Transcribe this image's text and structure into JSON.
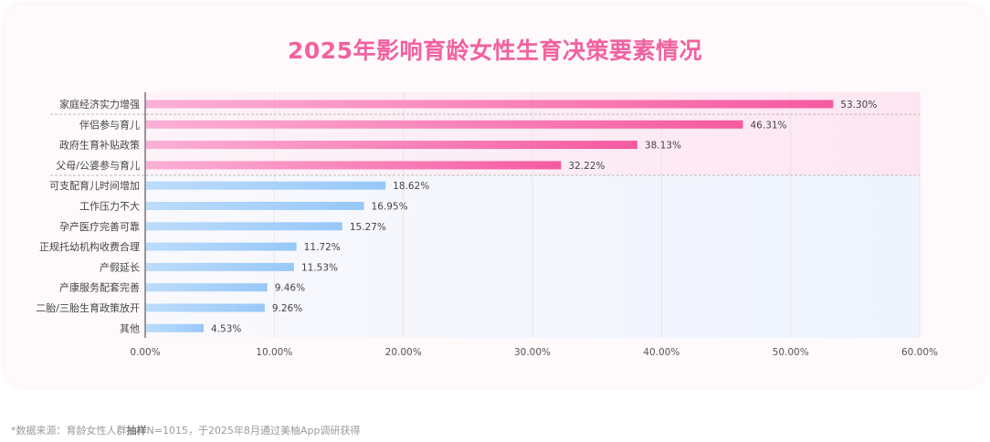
{
  "title": "2025年影响育龄女性生育决策要素情况",
  "footnote": {
    "prefix": "*数据来源：育龄女性人群",
    "bold": "抽样",
    "suffix": "N=1015，于2025年8月通过美柚App调研获得"
  },
  "colors": {
    "title": "#f2629f",
    "pink_start": "#fbb0d6",
    "pink_end": "#f65aa0",
    "blue_start": "#bcdcfb",
    "blue_end": "#98c8f8",
    "grid": "#e6e6e6"
  },
  "chart_data": {
    "type": "bar",
    "orientation": "horizontal",
    "title": "2025年影响育龄女性生育决策要素情况",
    "categories": [
      "家庭经济实力增强",
      "伴侣参与育儿",
      "政府生育补贴政策",
      "父母/公婆参与育儿",
      "可支配育儿时间增加",
      "工作压力不大",
      "孕产医疗完善可靠",
      "正规托幼机构收费合理",
      "产假延长",
      "产康服务配套完善",
      "二胎/三胎生育政策放开",
      "其他"
    ],
    "values": [
      53.3,
      46.31,
      38.13,
      32.22,
      18.62,
      16.95,
      15.27,
      11.72,
      11.53,
      9.46,
      9.26,
      4.53
    ],
    "value_labels": [
      "53.30%",
      "46.31%",
      "38.13%",
      "32.22%",
      "18.62%",
      "16.95%",
      "15.27%",
      "11.72%",
      "11.53%",
      "9.46%",
      "9.26%",
      "4.53%"
    ],
    "highlighted_count": 4,
    "xlim": [
      0,
      60
    ],
    "xticks": [
      "0.00%",
      "10.00%",
      "20.00%",
      "30.00%",
      "40.00%",
      "50.00%",
      "60.00%"
    ],
    "grid": true
  }
}
